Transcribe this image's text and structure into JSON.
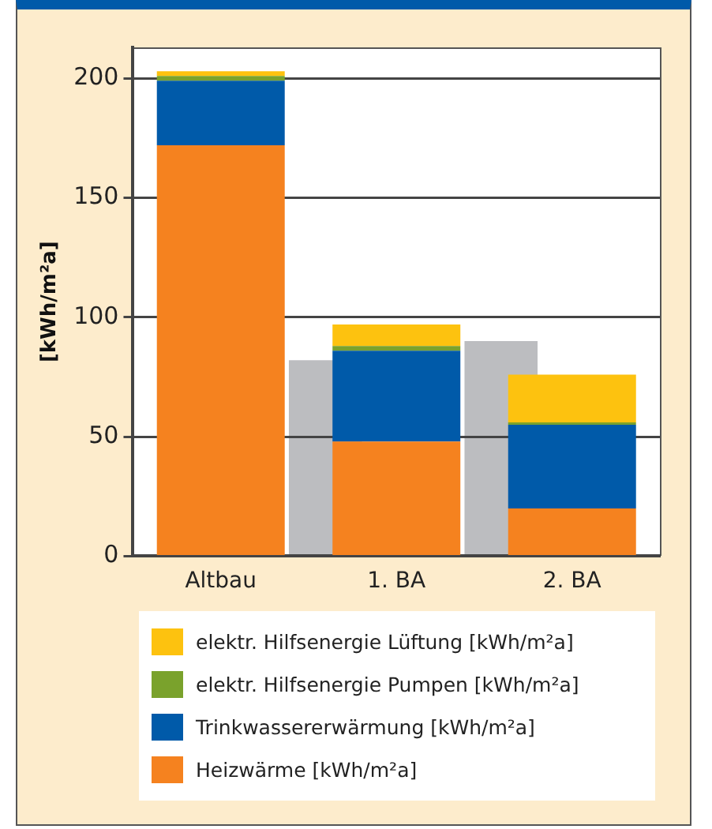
{
  "chart_data": [
    {
      "type": "bar",
      "categories": [
        null,
        null
      ],
      "ylim": [
        0,
        213
      ],
      "yticks": [
        0,
        50,
        100,
        150,
        200
      ],
      "tick_labels": false,
      "series": [
        {
          "color": "#bcbdc0",
          "values": [
            82,
            90
          ]
        }
      ]
    },
    {
      "type": "bar",
      "stacked": true,
      "ylabel": "[kWh/m²a]",
      "categories": [
        "Altbau",
        "1. BA",
        "2. BA"
      ],
      "ylim": [
        0,
        213
      ],
      "yticks": [
        0,
        50,
        100,
        150,
        200
      ],
      "grid": "y",
      "legend": "bottom",
      "series": [
        {
          "name": "Heizwärme [kWh/m²a]",
          "color": "#f5821f",
          "values": [
            172,
            48,
            20
          ]
        },
        {
          "name": "Trinkwassererwärmung [kWh/m²a]",
          "color": "#005aa9",
          "values": [
            27,
            38,
            35
          ]
        },
        {
          "name": "elektr. Hilfsenergie Pumpen [kWh/m²a]",
          "color": "#7aa22c",
          "values": [
            2,
            2,
            1
          ]
        },
        {
          "name": "elektr. Hilfsenergie Lüftung [kWh/m²a]",
          "color": "#fdc20f",
          "values": [
            2,
            9,
            20
          ]
        }
      ]
    }
  ]
}
